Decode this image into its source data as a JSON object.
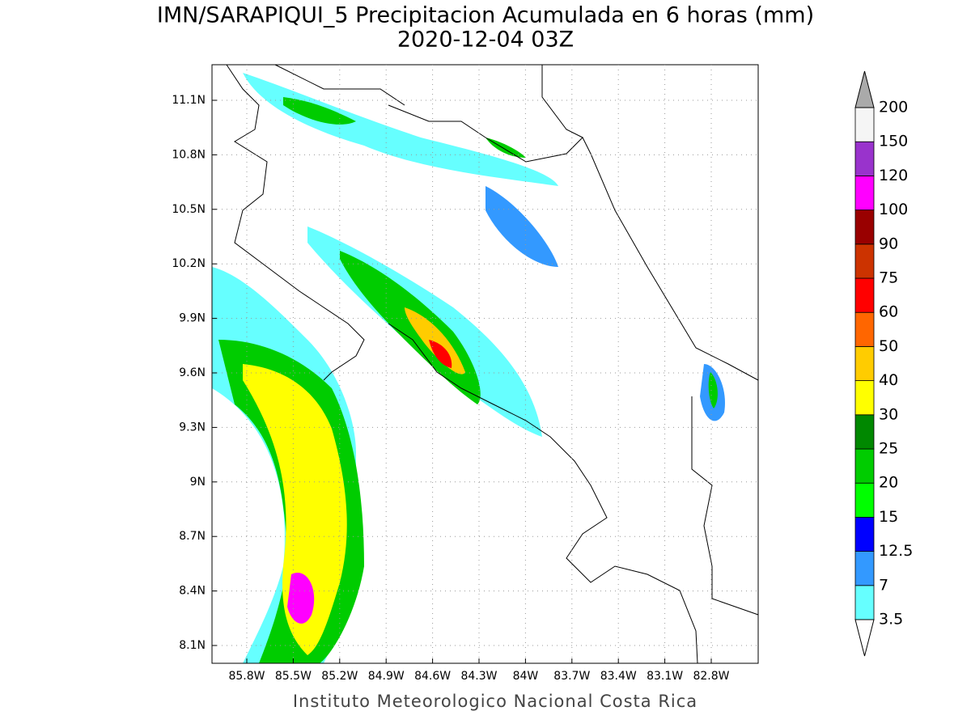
{
  "header": {
    "title": "IMN/SARAPIQUI_5 Precipitacion Acumulada en 6 horas (mm)",
    "subtitle": "2020-12-04 03Z"
  },
  "map": {
    "lat_labels": [
      "11.1N",
      "10.8N",
      "10.5N",
      "10.2N",
      "9.9N",
      "9.6N",
      "9.3N",
      "9N",
      "8.7N",
      "8.4N",
      "8.1N"
    ],
    "lon_labels": [
      "85.8W",
      "85.5W",
      "85.2W",
      "84.9W",
      "84.6W",
      "84.3W",
      "84W",
      "83.7W",
      "83.4W",
      "83.1W",
      "82.8W"
    ]
  },
  "colorbar": {
    "labels": [
      "3.5",
      "7",
      "12.5",
      "15",
      "20",
      "25",
      "30",
      "40",
      "50",
      "60",
      "75",
      "90",
      "100",
      "120",
      "150",
      "200"
    ],
    "colors": [
      "#66ffff",
      "#3399ff",
      "#0000ff",
      "#00ff00",
      "#00cc00",
      "#008800",
      "#ffff00",
      "#ffcc00",
      "#ff6600",
      "#ff0000",
      "#cc3300",
      "#990000",
      "#ff00ff",
      "#9933cc",
      "#f5f5f5"
    ],
    "over_color": "#aaaaaa",
    "under_color": "#ffffff"
  },
  "footer": "Instituto Meteorologico Nacional Costa Rica"
}
